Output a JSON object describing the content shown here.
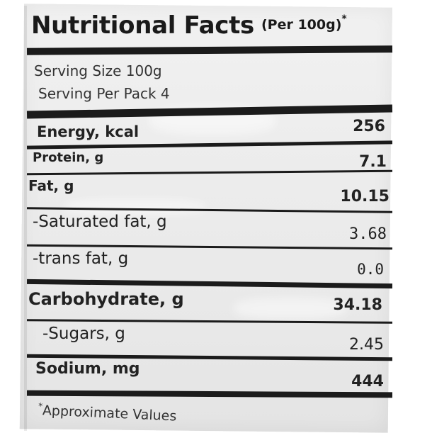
{
  "label": {
    "title": "Nutritional Facts",
    "title_sub": "(Per 100g)",
    "title_mark": "*",
    "serving_size": "Serving Size 100g",
    "servings_per_pack": "Serving Per Pack 4",
    "rows": [
      {
        "name": "Energy, kcal",
        "value": "256"
      },
      {
        "name": "Protein, g",
        "value": "7.1"
      },
      {
        "name": "Fat, g",
        "value": "10.15"
      },
      {
        "name": "-Saturated fat, g",
        "value": "3.68"
      },
      {
        "name": "-trans fat, g",
        "value": "0.0"
      },
      {
        "name": "Carbohydrate, g",
        "value": "34.18"
      },
      {
        "name": "-Sugars, g",
        "value": "2.45"
      },
      {
        "name": "Sodium, mg",
        "value": "444"
      }
    ],
    "footnote_mark": "*",
    "footnote": "Approximate Values"
  }
}
